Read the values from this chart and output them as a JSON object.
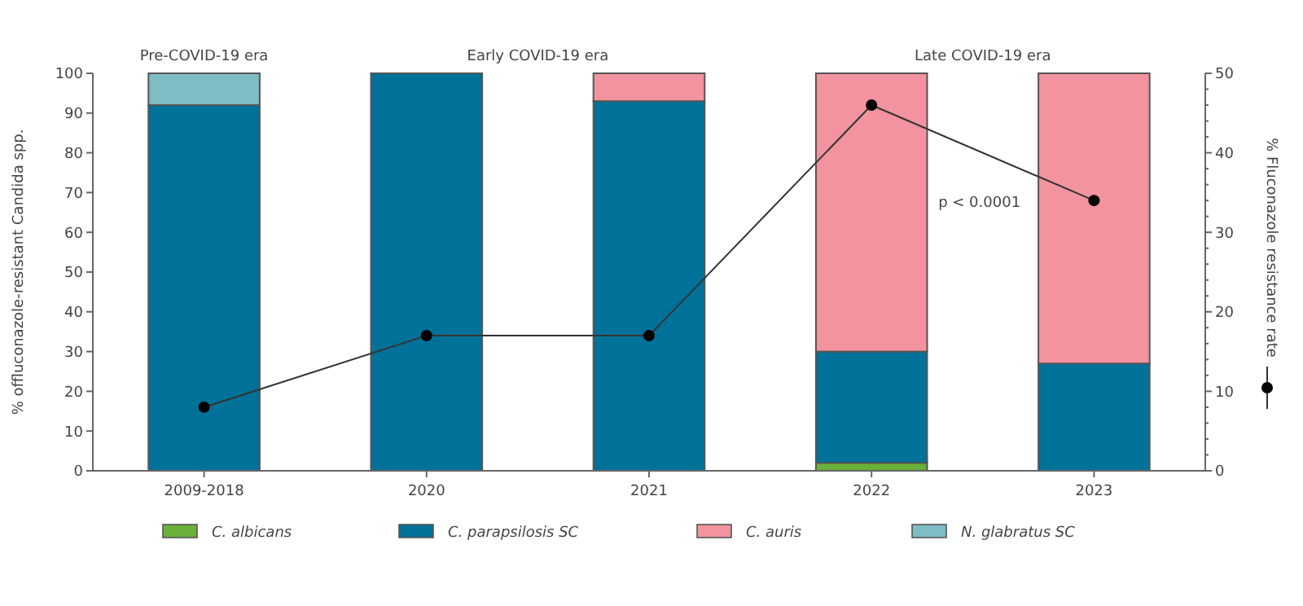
{
  "chart_data": {
    "type": "bar",
    "stacked": true,
    "ylabel": "% offluconazole-resistant Candida spp.",
    "y2label": "% Fluconazole resistance rate",
    "categories": [
      "2009-2018",
      "2020",
      "2021",
      "2022",
      "2023"
    ],
    "series": [
      {
        "name": "C. albicans",
        "color": "#6ab03a",
        "values": [
          0,
          0,
          0,
          2,
          0
        ]
      },
      {
        "name": "C. parapsilosis SC",
        "color": "#00729a",
        "values": [
          92,
          100,
          93,
          28,
          27
        ]
      },
      {
        "name": "C. auris",
        "color": "#f2939f",
        "values": [
          0,
          0,
          7,
          70,
          73
        ]
      },
      {
        "name": "N. glabratus SC",
        "color": "#7fbcc4",
        "values": [
          8,
          0,
          0,
          0,
          0
        ]
      },
      {
        "type": "line",
        "axis": "y2",
        "color": "#333333",
        "marker": "circle",
        "values": [
          8,
          17,
          17,
          46,
          34
        ]
      }
    ],
    "ylim": [
      0,
      100
    ],
    "yticks": [
      0,
      10,
      20,
      30,
      40,
      50,
      60,
      70,
      80,
      90,
      100
    ],
    "y2lim": [
      0,
      50
    ],
    "y2ticks": [
      0,
      {
        "value": 2,
        "label": null
      },
      {
        "value": 4,
        "label": null
      },
      {
        "value": 6,
        "label": null
      },
      {
        "value": 8,
        "label": null
      },
      10,
      {
        "value": 12,
        "label": null
      },
      {
        "value": 14,
        "label": null
      },
      {
        "value": 16,
        "label": null
      },
      {
        "value": 18,
        "label": null
      },
      20,
      {
        "value": 22,
        "label": null
      },
      {
        "value": 24,
        "label": null
      },
      {
        "value": 26,
        "label": null
      },
      {
        "value": 28,
        "label": null
      },
      30,
      {
        "value": 32,
        "label": null
      },
      {
        "value": 34,
        "label": null
      },
      {
        "value": 36,
        "label": null
      },
      {
        "value": 38,
        "label": null
      },
      40,
      {
        "value": 42,
        "label": null
      },
      {
        "value": 44,
        "label": null
      },
      {
        "value": 46,
        "label": null
      },
      {
        "value": 48,
        "label": null
      },
      50
    ],
    "annotations": [
      "Pre-COVID-19 era",
      "Early COVID-19 era",
      "Late COVID-19 era",
      "p < 0.0001"
    ],
    "legend": "bottom",
    "grid": false
  }
}
